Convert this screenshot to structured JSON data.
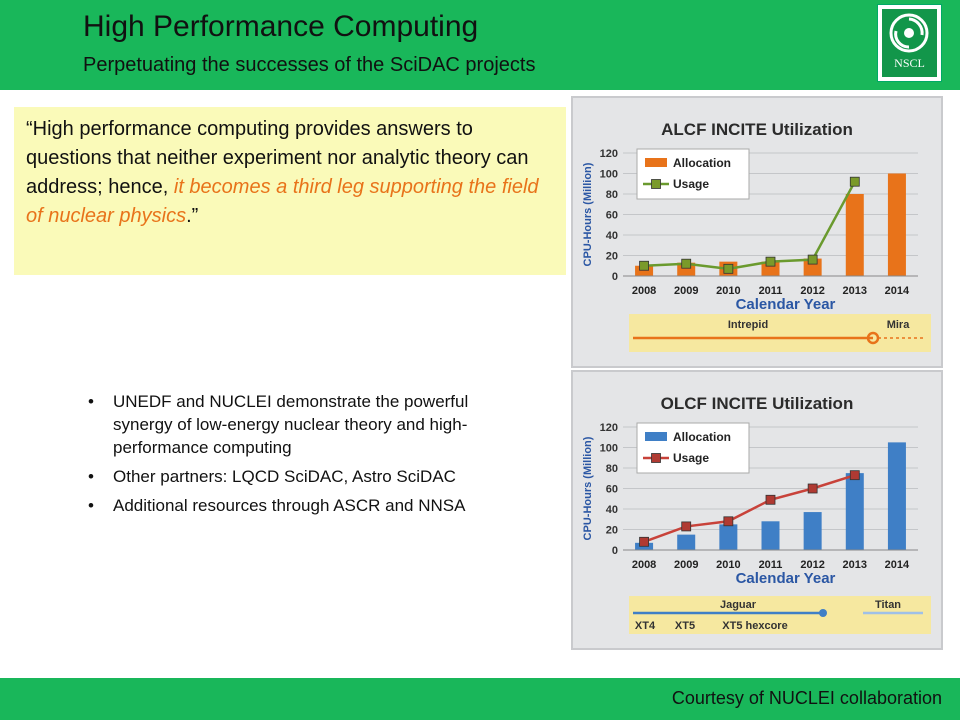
{
  "header": {
    "title": "High Performance Computing",
    "subtitle": "Perpetuating the successes of the SciDAC projects",
    "logo_text": "NSCL"
  },
  "quote": {
    "part1": "“High performance computing provides answers to questions that neither experiment nor analytic theory can address; hence, ",
    "highlight": "it becomes a third leg supporting the field of nuclear physics",
    "part2": ".”"
  },
  "bullets": [
    "UNEDF and NUCLEI demonstrate the powerful synergy of low-energy nuclear theory and high-performance computing",
    "Other partners: LQCD SciDAC, Astro SciDAC",
    "Additional resources through ASCR and NNSA"
  ],
  "footer": {
    "courtesy": "Courtesy of NUCLEI collaboration"
  },
  "colors": {
    "band": "#19b75a",
    "alcf_bar": "#e8731a",
    "alcf_line": "#6a9a2e",
    "olcf_bar": "#3f7fc6",
    "olcf_line": "#c8423a",
    "timeline_bg": "#f6e8a0"
  },
  "chart_data": [
    {
      "type": "bar",
      "title": "ALCF INCITE Utilization",
      "xlabel": "Calendar Year",
      "ylabel": "CPU-Hours (Million)",
      "categories": [
        "2008",
        "2009",
        "2010",
        "2011",
        "2012",
        "2013",
        "2014"
      ],
      "ylim": [
        0,
        120
      ],
      "yticks": [
        "0",
        "20",
        "40",
        "60",
        "80",
        "100",
        "120"
      ],
      "series": [
        {
          "name": "Allocation",
          "kind": "bar",
          "values": [
            10,
            13,
            14,
            14,
            17,
            80,
            100
          ]
        },
        {
          "name": "Usage",
          "kind": "line",
          "values": [
            10,
            12,
            7,
            14,
            16,
            92,
            null
          ]
        }
      ],
      "timeline": {
        "labels": [
          "Intrepid",
          "Mira"
        ]
      },
      "legend": "top-left",
      "grid": true
    },
    {
      "type": "bar",
      "title": "OLCF INCITE Utilization",
      "xlabel": "Calendar Year",
      "ylabel": "CPU-Hours (Million)",
      "categories": [
        "2008",
        "2009",
        "2010",
        "2011",
        "2012",
        "2013",
        "2014"
      ],
      "ylim": [
        0,
        120
      ],
      "yticks": [
        "0",
        "20",
        "40",
        "60",
        "80",
        "100",
        "120"
      ],
      "series": [
        {
          "name": "Allocation",
          "kind": "bar",
          "values": [
            7,
            15,
            25,
            28,
            37,
            75,
            105
          ]
        },
        {
          "name": "Usage",
          "kind": "line",
          "values": [
            8,
            23,
            28,
            49,
            60,
            73,
            null
          ]
        }
      ],
      "timeline": {
        "top_labels": [
          "Jaguar",
          "Titan"
        ],
        "bottom_labels": [
          "XT4",
          "XT5",
          "XT5 hexcore"
        ]
      },
      "legend": "top-left",
      "grid": true
    }
  ]
}
